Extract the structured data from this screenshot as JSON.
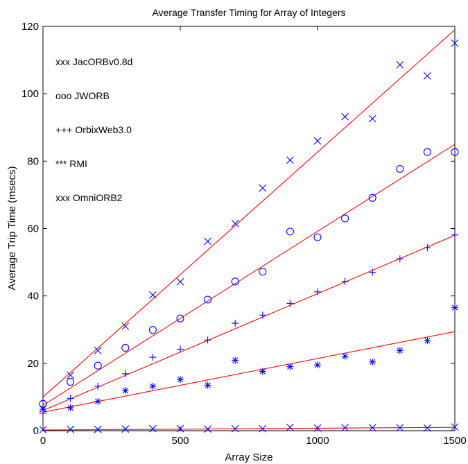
{
  "chart_data": {
    "type": "scatter",
    "title": "Average Transfer Timing for Array of Integers",
    "xlabel": "Array Size",
    "ylabel": "Average Trip Time (msecs)",
    "xlim": [
      0,
      1500
    ],
    "ylim": [
      0,
      120
    ],
    "xticks": [
      0,
      500,
      1000,
      1500
    ],
    "yticks": [
      0,
      20,
      40,
      60,
      80,
      100,
      120
    ],
    "grid": false,
    "marker_color": "#0000ff",
    "fit_line_color": "#ff0000",
    "annotations": [
      "xxx JacORBv0.8d",
      "ooo JWORB",
      "+++ OrbixWeb3.0",
      "*** RMI",
      "xxx OmniORB2"
    ],
    "series": [
      {
        "marker": "x",
        "x": [
          0,
          100,
          200,
          300,
          400,
          500,
          600,
          700,
          800,
          900,
          1000,
          1100,
          1200,
          1300,
          1400,
          1500
        ],
        "values": [
          6.5,
          16.5,
          23.8,
          31,
          40.3,
          44.2,
          56.2,
          61.5,
          72,
          80.3,
          86,
          93.2,
          92.6,
          108.6,
          105.3,
          115
        ],
        "fit": [
          10,
          119
        ]
      },
      {
        "marker": "o",
        "x": [
          0,
          100,
          200,
          300,
          400,
          500,
          600,
          700,
          800,
          900,
          1000,
          1100,
          1200,
          1300,
          1400,
          1500
        ],
        "values": [
          8,
          14.5,
          19.3,
          24.6,
          29.9,
          33.3,
          38.9,
          44.3,
          47.2,
          59.1,
          57.4,
          63,
          69.1,
          77.7,
          82.7,
          82.7
        ],
        "fit": [
          7.5,
          85
        ]
      },
      {
        "marker": "+",
        "x": [
          0,
          100,
          200,
          300,
          400,
          500,
          600,
          700,
          800,
          900,
          1000,
          1100,
          1200,
          1300,
          1400,
          1500
        ],
        "values": [
          5.2,
          9.6,
          13.2,
          16.9,
          21.8,
          24.2,
          26.9,
          31.9,
          34.3,
          37.8,
          41.2,
          44.3,
          47,
          51,
          54.3,
          58.1
        ],
        "fit": [
          6,
          58
        ]
      },
      {
        "marker": "*",
        "x": [
          0,
          100,
          200,
          300,
          400,
          500,
          600,
          700,
          800,
          900,
          1000,
          1100,
          1200,
          1300,
          1400,
          1500
        ],
        "values": [
          6.4,
          6.8,
          8.7,
          11.9,
          13.2,
          15.2,
          13.5,
          20.9,
          17.6,
          19,
          19.5,
          22.1,
          20.4,
          23.8,
          26.7,
          36.5
        ],
        "fit": [
          5.5,
          29.4
        ]
      },
      {
        "marker": "x",
        "x": [
          0,
          100,
          200,
          300,
          400,
          500,
          600,
          700,
          800,
          900,
          1000,
          1100,
          1200,
          1300,
          1400,
          1500
        ],
        "values": [
          0.3,
          0.4,
          0.4,
          0.5,
          0.6,
          0.6,
          0.5,
          0.6,
          0.6,
          1,
          0.8,
          0.9,
          0.9,
          0.9,
          0.8,
          1.1
        ],
        "fit": [
          0.2,
          1
        ]
      }
    ]
  }
}
